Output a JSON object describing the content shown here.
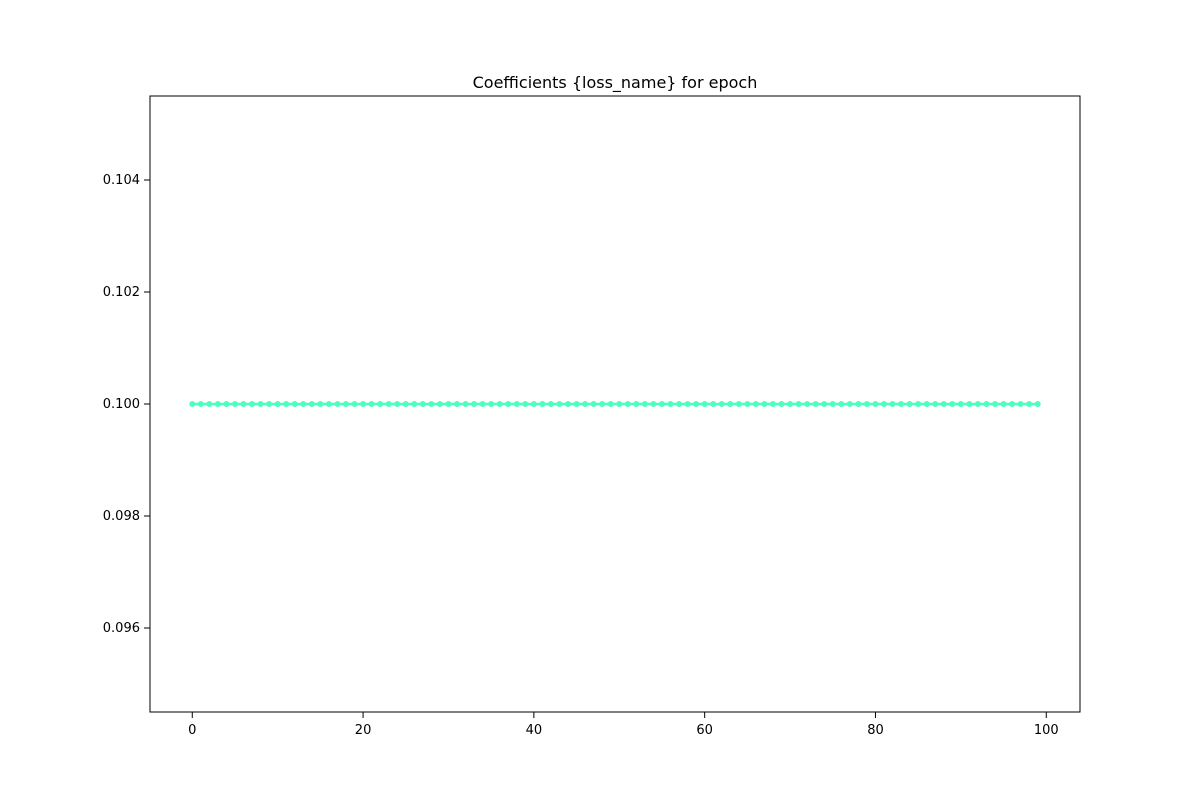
{
  "chart_data": {
    "type": "line",
    "title": "Coefficients {loss_name} for epoch",
    "xlabel": "",
    "ylabel": "",
    "xlim": [
      -4.95,
      103.95
    ],
    "ylim": [
      0.0945,
      0.1055
    ],
    "xticks": [
      0,
      20,
      40,
      60,
      80,
      100
    ],
    "yticks": [
      0.096,
      0.098,
      0.1,
      0.102,
      0.104
    ],
    "xtick_labels": [
      "0",
      "20",
      "40",
      "60",
      "80",
      "100"
    ],
    "ytick_labels": [
      "0.096",
      "0.098",
      "0.100",
      "0.102",
      "0.104"
    ],
    "grid": false,
    "series": [
      {
        "color": "#4dffbf",
        "marker": "circle",
        "x_start": 0,
        "x_end": 99,
        "x_step": 1,
        "constant_value": 0.1
      }
    ]
  }
}
